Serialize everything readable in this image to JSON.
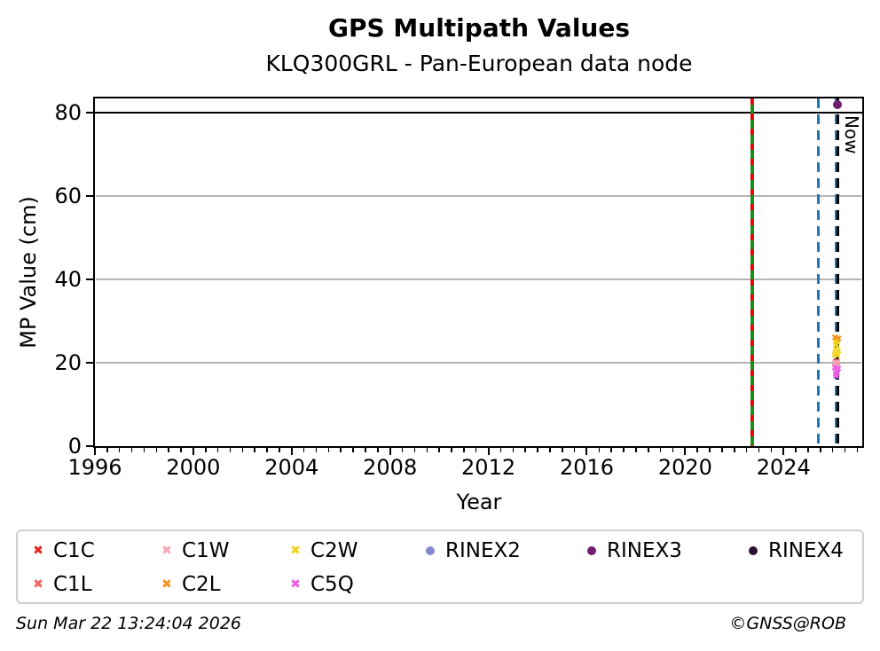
{
  "figure": {
    "footer_left": "Sun Mar 22 13:24:04 2026",
    "footer_right": "©GNSS@ROB"
  },
  "chart_data": {
    "type": "scatter",
    "title": "GPS Multipath Values",
    "subtitle": "KLQ300GRL - Pan-European data node",
    "xlabel": "Year",
    "ylabel": "MP Value (cm)",
    "xlim": [
      1996,
      2027.2
    ],
    "ylim": [
      0,
      83.4
    ],
    "xticks": [
      1996,
      2000,
      2004,
      2008,
      2012,
      2016,
      2020,
      2024
    ],
    "xtick_minor_step": 0.5,
    "yticks": [
      0,
      20,
      40,
      60,
      80
    ],
    "grid": true,
    "grid_color": "#b4b4b4",
    "legend_position": "bottom",
    "now_label": "Now",
    "hlines": [
      {
        "y": 80,
        "color": "#000000",
        "style": "solid",
        "width": 2.5
      }
    ],
    "vlines": [
      {
        "x": 2022.72,
        "color": "#149414",
        "style": "solid",
        "width": 3.5,
        "name": "event-line-green"
      },
      {
        "x": 2022.72,
        "color": "#e60000",
        "style": "dashed",
        "dash": [
          7,
          10
        ],
        "width": 3,
        "name": "event-line-red-dashed"
      },
      {
        "x": 2025.42,
        "color": "#1f77b4",
        "style": "dashed",
        "dash": [
          11,
          7
        ],
        "width": 3,
        "name": "event-line-blue-dashed"
      },
      {
        "x": 2026.12,
        "color": "#1f77b4",
        "style": "dashed",
        "dash": [
          11,
          7
        ],
        "width": 3,
        "name": "last-data-line"
      },
      {
        "x": 2026.21,
        "color": "#000000",
        "style": "dashed",
        "dash": [
          11,
          7
        ],
        "width": 3,
        "name": "now-line",
        "label": "Now"
      }
    ],
    "series": [
      {
        "name": "C1C",
        "color": "#e8251c",
        "marker": "x",
        "points": [
          [
            2026.13,
            20.3
          ]
        ]
      },
      {
        "name": "C1L",
        "color": "#f2625c",
        "marker": "x",
        "points": [
          [
            2026.16,
            19.9
          ]
        ]
      },
      {
        "name": "C1W",
        "color": "#f7a6b4",
        "marker": "x",
        "points": [
          [
            2026.1,
            20.1
          ],
          [
            2026.18,
            19.7
          ]
        ]
      },
      {
        "name": "C2L",
        "color": "#f5921e",
        "marker": "x",
        "points": [
          [
            2026.1,
            25.9
          ],
          [
            2026.17,
            25.4
          ],
          [
            2026.22,
            25.7
          ]
        ]
      },
      {
        "name": "C2W",
        "color": "#f0d41c",
        "marker": "x",
        "points": [
          [
            2026.08,
            22.0
          ],
          [
            2026.12,
            23.2
          ],
          [
            2026.15,
            24.3
          ],
          [
            2026.18,
            21.6
          ],
          [
            2026.21,
            22.8
          ],
          [
            2026.13,
            24.9
          ]
        ]
      },
      {
        "name": "C5Q",
        "color": "#f05ae6",
        "marker": "x",
        "points": [
          [
            2026.09,
            18.8
          ],
          [
            2026.13,
            17.2
          ],
          [
            2026.17,
            18.0
          ],
          [
            2026.21,
            18.6
          ],
          [
            2026.14,
            16.8
          ]
        ]
      },
      {
        "name": "RINEX2",
        "color": "#8388cf",
        "marker": "circle",
        "points": []
      },
      {
        "name": "RINEX3",
        "color": "#6f1d70",
        "marker": "circle",
        "points": [
          [
            2026.18,
            82.0
          ]
        ]
      },
      {
        "name": "RINEX4",
        "color": "#2b1033",
        "marker": "circle",
        "points": []
      }
    ],
    "legend": {
      "items": [
        {
          "label": "C1C",
          "color": "#e8251c",
          "marker": "x",
          "col": 0,
          "row": 0
        },
        {
          "label": "C1L",
          "color": "#f2625c",
          "marker": "x",
          "col": 0,
          "row": 1
        },
        {
          "label": "C1W",
          "color": "#f7a6b4",
          "marker": "x",
          "col": 1,
          "row": 0
        },
        {
          "label": "C2L",
          "color": "#f5921e",
          "marker": "x",
          "col": 1,
          "row": 1
        },
        {
          "label": "C2W",
          "color": "#f0d41c",
          "marker": "x",
          "col": 2,
          "row": 0
        },
        {
          "label": "C5Q",
          "color": "#f05ae6",
          "marker": "x",
          "col": 2,
          "row": 1
        },
        {
          "label": "RINEX2",
          "color": "#8388cf",
          "marker": "circle",
          "col": 3,
          "row": 0
        },
        {
          "label": "RINEX3",
          "color": "#6f1d70",
          "marker": "circle",
          "col": 4,
          "row": 0
        },
        {
          "label": "RINEX4",
          "color": "#2b1033",
          "marker": "circle",
          "col": 5,
          "row": 0
        }
      ]
    }
  }
}
